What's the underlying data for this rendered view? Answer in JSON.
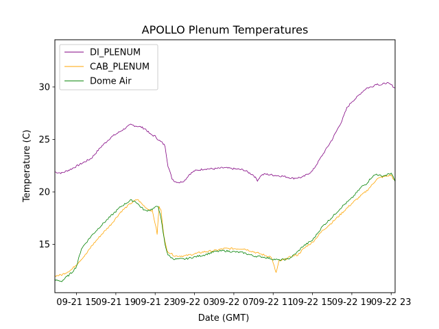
{
  "chart_data": {
    "type": "line",
    "title": "APOLLO Plenum Temperatures",
    "xlabel": "Date (GMT)",
    "ylabel": "Temperature (C)",
    "xlim_hours": [
      12.8,
      47.4
    ],
    "ylim": [
      10.4,
      34.5
    ],
    "x_unit": "hours since 09-21 00:00 GMT",
    "x_ticks": [
      {
        "label": "09-21 15",
        "value": 15
      },
      {
        "label": "09-21 19",
        "value": 19
      },
      {
        "label": "09-21 23",
        "value": 23
      },
      {
        "label": "09-22 03",
        "value": 27
      },
      {
        "label": "09-22 07",
        "value": 31
      },
      {
        "label": "09-22 11",
        "value": 35
      },
      {
        "label": "09-22 15",
        "value": 39
      },
      {
        "label": "09-22 19",
        "value": 43
      },
      {
        "label": "09-22 23",
        "value": 47
      }
    ],
    "y_ticks": [
      {
        "label": "15",
        "value": 15
      },
      {
        "label": "20",
        "value": 20
      },
      {
        "label": "25",
        "value": 25
      },
      {
        "label": "30",
        "value": 30
      }
    ],
    "legend_position": "top-left",
    "series": [
      {
        "name": "DI_PLENUM",
        "color": "#800080",
        "x": [
          12.8,
          13.5,
          14.5,
          15.5,
          16.5,
          17.5,
          18.5,
          19.5,
          20.5,
          21.5,
          22.0,
          22.5,
          23.0,
          23.4,
          23.7,
          24.0,
          24.3,
          24.7,
          25.0,
          25.5,
          26.0,
          26.5,
          27.0,
          28.0,
          29.0,
          30.0,
          31.0,
          32.0,
          33.0,
          33.4,
          33.8,
          34.2,
          35.0,
          36.0,
          37.0,
          38.0,
          39.0,
          40.0,
          41.0,
          42.0,
          42.5,
          43.0,
          43.5,
          44.0,
          44.5,
          45.0,
          45.5,
          46.0,
          46.5,
          47.0,
          47.4
        ],
        "y": [
          21.9,
          21.8,
          22.2,
          22.7,
          23.2,
          24.3,
          25.2,
          25.8,
          26.4,
          26.2,
          26.0,
          25.5,
          25.3,
          24.9,
          24.7,
          24.4,
          22.5,
          21.3,
          21.0,
          20.9,
          21.1,
          21.7,
          22.0,
          22.2,
          22.2,
          22.3,
          22.2,
          22.1,
          21.6,
          21.1,
          21.6,
          21.7,
          21.6,
          21.5,
          21.3,
          21.4,
          22.0,
          23.5,
          25.0,
          26.8,
          28.0,
          28.6,
          29.0,
          29.5,
          29.9,
          30.0,
          30.3,
          30.2,
          30.4,
          30.2,
          29.9
        ]
      },
      {
        "name": "CAB_PLENUM",
        "color": "#ffa500",
        "x": [
          12.8,
          13.5,
          14.5,
          15.5,
          16.0,
          16.5,
          17.5,
          18.5,
          19.5,
          20.5,
          21.2,
          21.7,
          22.2,
          22.7,
          23.0,
          23.2,
          23.4,
          23.6,
          23.8,
          24.0,
          24.2,
          24.5,
          25.0,
          26.0,
          27.0,
          28.0,
          29.0,
          30.0,
          31.0,
          32.0,
          33.0,
          34.0,
          34.8,
          35.3,
          35.6,
          36.0,
          37.0,
          37.5,
          38.0,
          38.5,
          39.0,
          40.0,
          41.0,
          42.0,
          43.0,
          44.0,
          44.5,
          45.0,
          45.5,
          46.0,
          46.5,
          47.0,
          47.4
        ],
        "y": [
          12.0,
          12.1,
          12.6,
          13.6,
          14.1,
          14.8,
          15.9,
          16.9,
          18.1,
          18.9,
          19.3,
          18.8,
          18.4,
          18.2,
          17.0,
          16.0,
          18.6,
          18.2,
          16.5,
          15.2,
          14.4,
          14.2,
          13.9,
          13.9,
          14.1,
          14.3,
          14.4,
          14.6,
          14.6,
          14.6,
          14.3,
          14.0,
          13.8,
          12.3,
          13.4,
          13.5,
          13.9,
          14.0,
          14.5,
          14.9,
          15.2,
          16.3,
          17.1,
          18.0,
          18.9,
          19.7,
          20.1,
          20.6,
          21.2,
          21.4,
          21.5,
          21.6,
          21.0
        ]
      },
      {
        "name": "Dome Air",
        "color": "#008000",
        "x": [
          12.8,
          13.5,
          14.5,
          15.0,
          15.5,
          16.5,
          17.5,
          18.5,
          19.5,
          20.5,
          21.0,
          21.5,
          22.0,
          22.5,
          23.0,
          23.3,
          23.6,
          24.0,
          24.3,
          24.7,
          25.0,
          26.0,
          27.0,
          28.0,
          29.0,
          30.0,
          31.0,
          32.0,
          33.0,
          34.0,
          35.0,
          35.6,
          36.5,
          37.0,
          37.5,
          38.0,
          38.5,
          39.0,
          40.0,
          41.0,
          42.0,
          43.0,
          44.0,
          44.5,
          45.0,
          45.5,
          46.0,
          46.5,
          47.0,
          47.4
        ],
        "y": [
          11.6,
          11.5,
          12.3,
          12.9,
          14.6,
          15.8,
          16.8,
          17.7,
          18.6,
          19.2,
          19.1,
          18.6,
          18.2,
          18.3,
          18.5,
          18.7,
          17.4,
          15.0,
          14.0,
          13.7,
          13.6,
          13.6,
          13.8,
          14.0,
          14.3,
          14.4,
          14.3,
          14.2,
          13.9,
          13.8,
          13.6,
          13.5,
          13.6,
          13.9,
          14.3,
          14.8,
          15.1,
          15.4,
          16.7,
          17.6,
          18.6,
          19.4,
          20.5,
          20.8,
          21.4,
          21.7,
          21.5,
          21.6,
          21.8,
          21.0
        ]
      }
    ]
  }
}
